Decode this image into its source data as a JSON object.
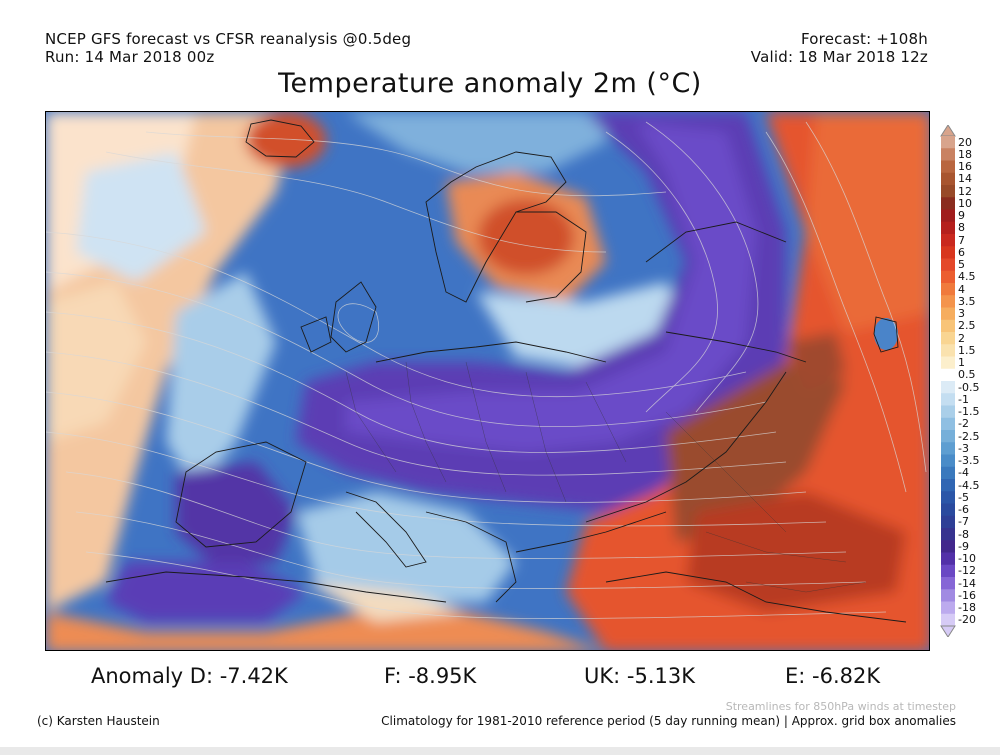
{
  "header": {
    "left_line1": "NCEP GFS forecast vs CFSR reanalysis @0.5deg",
    "left_line2": "Run: 14 Mar 2018 00z",
    "right_line1": "Forecast: +108h",
    "right_line2": "Valid: 18 Mar 2018 12z"
  },
  "title": "Temperature anomaly 2m (°C)",
  "colorbar": {
    "labels": [
      "20",
      "18",
      "16",
      "14",
      "12",
      "10",
      "9",
      "8",
      "7",
      "6",
      "5",
      "4.5",
      "4",
      "3.5",
      "3",
      "2.5",
      "2",
      "1.5",
      "1",
      "0.5",
      "-0.5",
      "-1",
      "-1.5",
      "-2",
      "-2.5",
      "-3",
      "-3.5",
      "-4",
      "-4.5",
      "-5",
      "-6",
      "-7",
      "-8",
      "-9",
      "-10",
      "-12",
      "-14",
      "-16",
      "-18",
      "-20"
    ],
    "colors": [
      "#d8a48c",
      "#c98262",
      "#b9663f",
      "#a8552f",
      "#984a28",
      "#8a2c1e",
      "#a01c1c",
      "#b51f1c",
      "#c9281e",
      "#d8361e",
      "#e4482a",
      "#ec5e30",
      "#f07a3c",
      "#f4944c",
      "#f6ad5e",
      "#f8c478",
      "#f9d592",
      "#fae2ae",
      "#fcefcc",
      "#ffffff",
      "#dcebf6",
      "#c4def1",
      "#aacfe9",
      "#8fbfe2",
      "#76afd9",
      "#5e9ed1",
      "#4a8cc8",
      "#3a79bd",
      "#3066b3",
      "#2b56a8",
      "#2a4a9e",
      "#2e3f96",
      "#36338f",
      "#42278c",
      "#5230a8",
      "#6a48c4",
      "#8666d6",
      "#a18ae2",
      "#bcaaee",
      "#d6cbf6"
    ]
  },
  "stats": [
    "Anomaly D: -7.42K",
    "F: -8.95K",
    "UK: -5.13K",
    "E: -6.82K"
  ],
  "footer": {
    "streamlines": "Streamlines for 850hPa winds at timestep",
    "copyright": "(c) Karsten Haustein",
    "climatology": "Climatology for 1981-2010 reference period (5 day running mean) | Approx. grid box anomalies"
  }
}
